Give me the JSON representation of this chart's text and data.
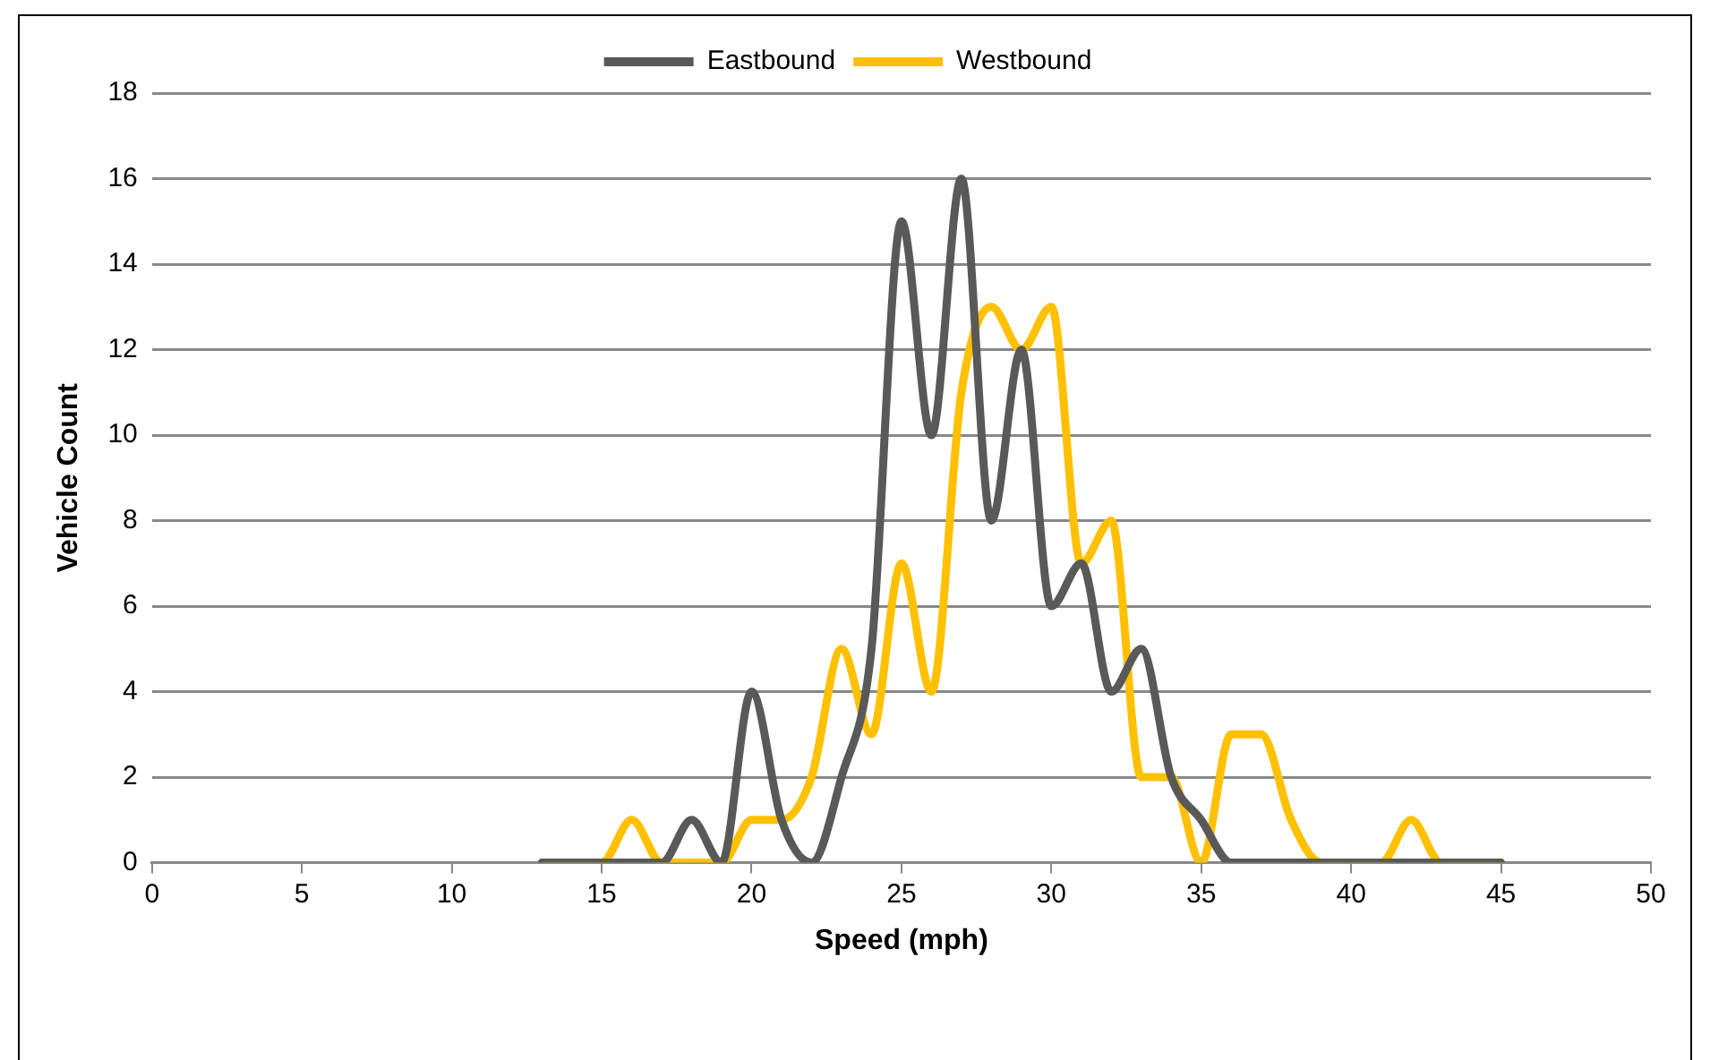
{
  "chart_data": {
    "type": "line",
    "xlabel": "Speed (mph)",
    "ylabel": "Vehicle Count",
    "x": [
      13,
      14,
      15,
      16,
      17,
      18,
      19,
      20,
      21,
      22,
      23,
      24,
      25,
      26,
      27,
      28,
      29,
      30,
      31,
      32,
      33,
      34,
      35,
      36,
      37,
      38,
      39,
      40,
      41,
      42,
      43,
      44,
      45
    ],
    "series": [
      {
        "name": "Eastbound",
        "color": "#595959",
        "values": [
          0,
          0,
          0,
          0,
          0,
          1,
          0,
          4,
          1,
          0,
          2,
          5,
          15,
          10,
          16,
          8,
          12,
          6,
          7,
          4,
          5,
          2,
          1,
          0,
          0,
          0,
          0,
          0,
          0,
          0,
          0,
          0,
          0
        ]
      },
      {
        "name": "Westbound",
        "color": "#ffc000",
        "values": [
          0,
          0,
          0,
          1,
          0,
          0,
          0,
          1,
          1,
          2,
          5,
          3,
          7,
          4,
          11,
          13,
          12,
          13,
          7,
          8,
          2,
          2,
          0,
          3,
          3,
          1,
          0,
          0,
          0,
          1,
          0,
          0,
          0
        ]
      }
    ],
    "xlim": [
      0,
      50
    ],
    "xticks": [
      0,
      5,
      10,
      15,
      20,
      25,
      30,
      35,
      40,
      45,
      50
    ],
    "ylim": [
      0,
      18
    ],
    "yticks": [
      0,
      2,
      4,
      6,
      8,
      10,
      12,
      14,
      16,
      18
    ],
    "grid": "y",
    "legend": "top",
    "marker": "none",
    "line_style": "solid"
  }
}
